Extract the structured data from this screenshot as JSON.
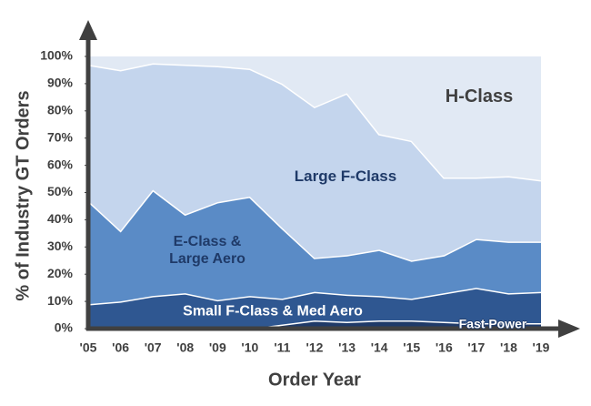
{
  "chart_data": {
    "type": "stacked_area",
    "x_label": "Order Year",
    "y_label": "% of Industry GT Orders",
    "categories": [
      "'05",
      "'06",
      "'07",
      "'08",
      "'09",
      "'10",
      "'11",
      "'12",
      "'13",
      "'14",
      "'15",
      "'16",
      "'17",
      "'18",
      "'19"
    ],
    "series": [
      {
        "name": "Fast Power",
        "color": "#1f3a68",
        "values": [
          0,
          0,
          0,
          0,
          0,
          0,
          1.5,
          3,
          2.5,
          3,
          3,
          2.5,
          2,
          2,
          2
        ]
      },
      {
        "name": "Small F-Class & Med Aero",
        "color": "#2f5791",
        "values": [
          9,
          10,
          12,
          13,
          10.5,
          12,
          9.5,
          10.5,
          10,
          9,
          8,
          10.5,
          13,
          11,
          11.5
        ]
      },
      {
        "name": "E-Class & Large Aero",
        "color": "#5a8bc6",
        "values": [
          38,
          26,
          39,
          29,
          36,
          36.5,
          26,
          12.5,
          14.5,
          17,
          14,
          14,
          18,
          19,
          18.5
        ]
      },
      {
        "name": "Large F-Class",
        "color": "#c4d5ed",
        "values": [
          50,
          59,
          46.5,
          55,
          50,
          47,
          53,
          55.5,
          59.5,
          42.5,
          44,
          28.5,
          22.5,
          24,
          22.5
        ]
      },
      {
        "name": "H-Class",
        "color": "#e1e9f4",
        "values": [
          3,
          5,
          2.5,
          3,
          3.5,
          4.5,
          10,
          18.5,
          13.5,
          28.5,
          31,
          44.5,
          44.5,
          44,
          45.5
        ]
      }
    ],
    "ylim": [
      0,
      100
    ],
    "yticks": [
      {
        "value": 0,
        "label": "0%"
      },
      {
        "value": 10,
        "label": "10%"
      },
      {
        "value": 20,
        "label": "20%"
      },
      {
        "value": 30,
        "label": "30%"
      },
      {
        "value": 40,
        "label": "40%"
      },
      {
        "value": 50,
        "label": "50%"
      },
      {
        "value": 60,
        "label": "60%"
      },
      {
        "value": 70,
        "label": "70%"
      },
      {
        "value": 80,
        "label": "80%"
      },
      {
        "value": 90,
        "label": "90%"
      },
      {
        "value": 100,
        "label": "100%"
      }
    ],
    "grid": false
  }
}
